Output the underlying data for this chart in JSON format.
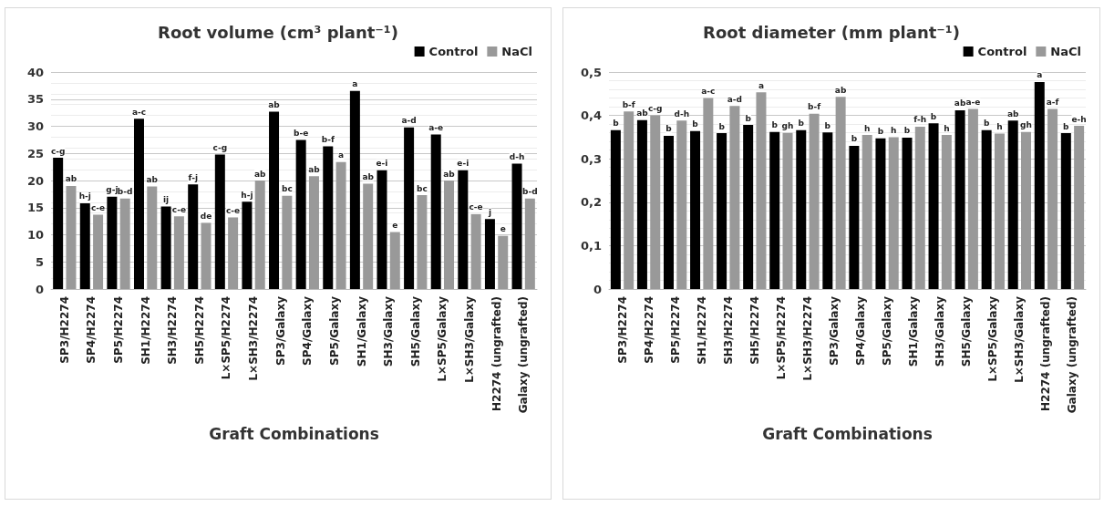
{
  "chart_data": [
    {
      "type": "bar",
      "title": "Root volume (cm³ plant⁻¹)",
      "xlabel": "Graft Combinations",
      "categories": [
        "SP3/H2274",
        "SP4/H2274",
        "SP5/H2274",
        "SH1/H2274",
        "SH3/H2274",
        "SH5/H2274",
        "L×SP5/H2274",
        "L×SH3/H2274",
        "SP3/Galaxy",
        "SP4/Galaxy",
        "SP5/Galaxy",
        "SH1/Galaxy",
        "SH3/Galaxy",
        "SH5/Galaxy",
        "L×SP5/Galaxy",
        "L×SH3/Galaxy",
        "H2274 (ungrafted)",
        "Galaxy (ungrafted)"
      ],
      "series": [
        {
          "name": "Control",
          "color": "#000000",
          "values": [
            24.2,
            15.8,
            17,
            31.4,
            15.2,
            19.3,
            24.8,
            16.1,
            32.7,
            27.5,
            26.3,
            36.5,
            21.9,
            29.8,
            28.5,
            21.9,
            12.9,
            23.1
          ],
          "value_labels": [
            "c-g",
            "h-j",
            "g-j",
            "a-c",
            "ij",
            "f-j",
            "c-g",
            "h-j",
            "ab",
            "b-e",
            "b-f",
            "a",
            "e-i",
            "a-d",
            "a-e",
            "e-i",
            "j",
            "d-h"
          ]
        },
        {
          "name": "NaCl",
          "color": "#999999",
          "values": [
            19.0,
            13.7,
            16.7,
            18.9,
            13.4,
            12.2,
            13.2,
            20.0,
            17.2,
            20.8,
            23.4,
            19.4,
            10.5,
            17.3,
            20.0,
            13.8,
            9.8,
            16.7
          ],
          "value_labels": [
            "ab",
            "c-e",
            "b-d",
            "ab",
            "c-e",
            "de",
            "c-e",
            "ab",
            "bc",
            "ab",
            "a",
            "ab",
            "e",
            "bc",
            "ab",
            "c-e",
            "e",
            "b-d"
          ]
        }
      ],
      "ylim": [
        0,
        40
      ],
      "yticks": [
        0,
        5,
        10,
        15,
        20,
        25,
        30,
        35,
        40
      ],
      "grid": "y",
      "legend": "top right"
    },
    {
      "type": "bar",
      "title": "Root diameter (mm plant⁻¹)",
      "xlabel": "Graft Combinations",
      "categories": [
        "SP3/H2274",
        "SP4/H2274",
        "SP5/H2274",
        "SH1/H2274",
        "SH3/H2274",
        "SH5/H2274",
        "L×SP5/H2274",
        "L×SH3/H2274",
        "SP3/Galaxy",
        "SP4/Galaxy",
        "SP5/Galaxy",
        "SH1/Galaxy",
        "SH3/Galaxy",
        "SH5/Galaxy",
        "L×SP5/Galaxy",
        "L×SH3/Galaxy",
        "H2274 (ungrafted)",
        "Galaxy (ungrafted)"
      ],
      "series": [
        {
          "name": "Control",
          "color": "#000000",
          "values": [
            0.366,
            0.389,
            0.353,
            0.364,
            0.359,
            0.378,
            0.362,
            0.366,
            0.361,
            0.33,
            0.347,
            0.349,
            0.382,
            0.412,
            0.366,
            0.388,
            0.477,
            0.359
          ],
          "value_labels": [
            "b",
            "ab",
            "b",
            "b",
            "b",
            "b",
            "b",
            "b",
            "b",
            "b",
            "b",
            "b",
            "b",
            "ab",
            "b",
            "ab",
            "a",
            "b"
          ]
        },
        {
          "name": "NaCl",
          "color": "#999999",
          "values": [
            0.409,
            0.4,
            0.388,
            0.44,
            0.422,
            0.453,
            0.36,
            0.404,
            0.443,
            0.355,
            0.35,
            0.374,
            0.355,
            0.415,
            0.358,
            0.362,
            0.415,
            0.376
          ],
          "value_labels": [
            "b-f",
            "c-g",
            "d-h",
            "a-c",
            "a-d",
            "a",
            "gh",
            "b-f",
            "ab",
            "h",
            "h",
            "f-h",
            "h",
            "a-e",
            "h",
            "gh",
            "a-f",
            "e-h"
          ]
        }
      ],
      "ylim": [
        0,
        0.5
      ],
      "yticks": [
        0,
        {
          "value": 0.1,
          "label": "0,1"
        },
        {
          "value": 0.2,
          "label": "0,2"
        },
        {
          "value": 0.3,
          "label": "0,3"
        },
        {
          "value": 0.4,
          "label": "0,4"
        },
        {
          "value": 0.5,
          "label": "0,5"
        }
      ],
      "grid": "y",
      "legend": "top right"
    }
  ]
}
